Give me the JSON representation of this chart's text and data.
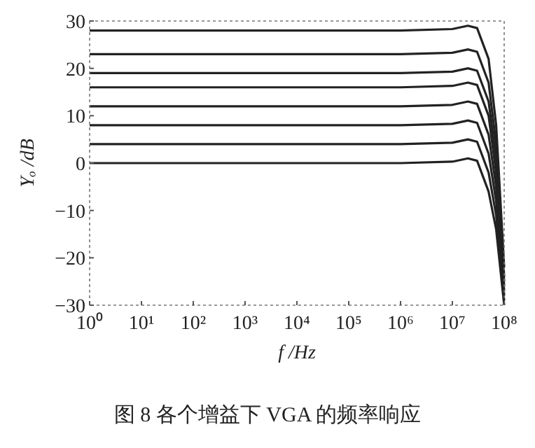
{
  "chart_data": {
    "type": "line",
    "xlabel": "f /Hz",
    "ylabel": "Yₒ /dB",
    "log": "x",
    "x": [
      1,
      1000000,
      10000000,
      20000000,
      30000000,
      50000000,
      70000000,
      100000000
    ],
    "series": [
      {
        "color": "#222222",
        "values": [
          0,
          0,
          0.3,
          1,
          0.5,
          -6,
          -14,
          -30
        ]
      },
      {
        "color": "#222222",
        "values": [
          4,
          4,
          4.3,
          5,
          4.5,
          -2,
          -11,
          -29
        ]
      },
      {
        "color": "#222222",
        "values": [
          8,
          8,
          8.3,
          9,
          8.5,
          2,
          -8,
          -28
        ]
      },
      {
        "color": "#222222",
        "values": [
          12,
          12,
          12.3,
          13,
          12.5,
          6,
          -5,
          -27
        ]
      },
      {
        "color": "#222222",
        "values": [
          16,
          16,
          16.3,
          17,
          16.5,
          10,
          -2,
          -26
        ]
      },
      {
        "color": "#222222",
        "values": [
          19,
          19,
          19.3,
          20,
          19.5,
          13,
          1,
          -25
        ]
      },
      {
        "color": "#222222",
        "values": [
          23,
          23,
          23.3,
          24,
          23.5,
          17,
          4,
          -24
        ]
      },
      {
        "color": "#222222",
        "values": [
          28,
          28,
          28.3,
          29,
          28.5,
          22,
          8,
          -22
        ]
      }
    ],
    "xlim": [
      1,
      100000000
    ],
    "xticks": [
      {
        "value": 1,
        "label": "10⁰"
      },
      {
        "value": 10,
        "label": "10¹"
      },
      {
        "value": 100,
        "label": "10²"
      },
      {
        "value": 1000,
        "label": "10³"
      },
      {
        "value": 10000,
        "label": "10⁴"
      },
      {
        "value": 100000,
        "label": "10⁵"
      },
      {
        "value": 1000000,
        "label": "10⁶"
      },
      {
        "value": 10000000,
        "label": "10⁷"
      },
      {
        "value": 100000000,
        "label": "10⁸"
      }
    ],
    "ylim": [
      -30,
      30
    ],
    "yticks": [
      -30,
      -20,
      -10,
      0,
      10,
      20,
      30
    ],
    "annotations": [
      "图 8   各个增益下 VGA 的频率响应"
    ]
  }
}
